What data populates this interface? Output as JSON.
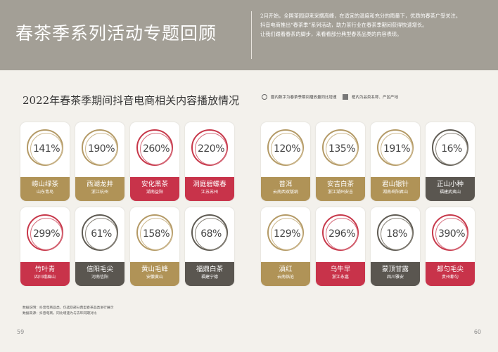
{
  "header": {
    "title": "春茶季系列活动专题回顾",
    "intro_lines": [
      "2月开始，全国茶园迎来采摘高峰，在适宜的温度和充分的雨量下，优质的春茶广受关注。",
      "抖音电商推出“春茶季”系列活动，助力茶行业在春茶季期间获得快速增长。",
      "让我们跟着春茶的脚步，来看看部分典型春茶品类的内容表现。"
    ]
  },
  "section": {
    "title": "2022年春茶季期间抖音电商相关内容播放情况",
    "legend_circle": "圈内数字为春茶季期间播放量同比增速",
    "legend_square": "框内为品类名称、产区产地"
  },
  "cards": [
    {
      "pct": "141%",
      "name": "崂山绿茶",
      "region": "山东青岛",
      "theme": "gold"
    },
    {
      "pct": "190%",
      "name": "西湖龙井",
      "region": "浙江杭州",
      "theme": "gold"
    },
    {
      "pct": "260%",
      "name": "安化黑茶",
      "region": "湖南益阳",
      "theme": "red"
    },
    {
      "pct": "220%",
      "name": "洞庭碧螺春",
      "region": "江苏苏州",
      "theme": "red"
    },
    {
      "pct": "120%",
      "name": "普洱",
      "region": "云南西双版纳",
      "theme": "gold"
    },
    {
      "pct": "135%",
      "name": "安吉白茶",
      "region": "浙江湖州安吉",
      "theme": "gold"
    },
    {
      "pct": "191%",
      "name": "君山银针",
      "region": "湖南岳阳君山",
      "theme": "gold"
    },
    {
      "pct": "16%",
      "name": "正山小种",
      "region": "福建武夷山",
      "theme": "dark"
    },
    {
      "pct": "299%",
      "name": "竹叶青",
      "region": "四川峨眉山",
      "theme": "red"
    },
    {
      "pct": "61%",
      "name": "信阳毛尖",
      "region": "河南信阳",
      "theme": "dark"
    },
    {
      "pct": "158%",
      "name": "黄山毛峰",
      "region": "安徽黄山",
      "theme": "gold"
    },
    {
      "pct": "68%",
      "name": "福鼎白茶",
      "region": "福建宁德",
      "theme": "dark"
    },
    {
      "pct": "129%",
      "name": "滇红",
      "region": "云南临沧",
      "theme": "gold"
    },
    {
      "pct": "296%",
      "name": "乌牛早",
      "region": "浙江永嘉",
      "theme": "red"
    },
    {
      "pct": "18%",
      "name": "蒙顶甘露",
      "region": "四川雅安",
      "theme": "dark"
    },
    {
      "pct": "390%",
      "name": "都匀毛尖",
      "region": "贵州都匀",
      "theme": "red"
    }
  ],
  "notes": [
    "数据说明：抖音电商品类，仅选取部分典型春茶品类进行展示",
    "数据来源：抖音电商，同比增速为与去年同期对比"
  ],
  "page_numbers": {
    "left": "59",
    "right": "60"
  }
}
